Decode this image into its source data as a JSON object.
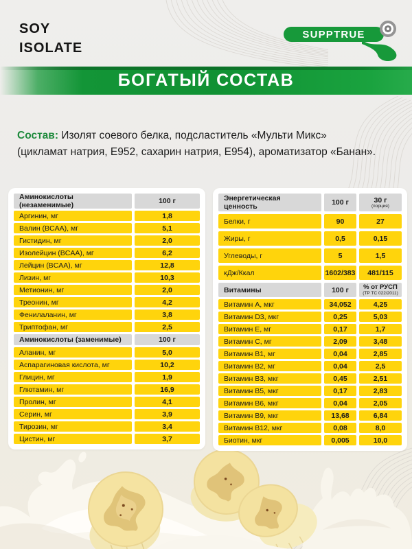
{
  "header": {
    "product_name": "SOY\nISOLATE",
    "brand": "SUPPTRUE",
    "brand_mark": "®"
  },
  "banner": {
    "title": "БОГАТЫЙ СОСТАВ"
  },
  "composition": {
    "label": "Состав:",
    "line1": "Изолят соевого белка, подсластитель «Мульти Микс»",
    "line2": "(цикламат натрия, Е952, сахарин натрия, Е954), ароматизатор «Банан»."
  },
  "amino_table": {
    "sections": [
      {
        "header": {
          "name": "Аминокислоты (незаменимые)",
          "col": "100 г"
        },
        "rows": [
          [
            "Аргинин, мг",
            "1,8"
          ],
          [
            "Валин (BCAA), мг",
            "5,1"
          ],
          [
            "Гистидин, мг",
            "2,0"
          ],
          [
            "Изолейцин (BCAA), мг",
            "6,2"
          ],
          [
            "Лейцин (BCAA), мг",
            "12,8"
          ],
          [
            "Лизин, мг",
            "10,3"
          ],
          [
            "Метионин, мг",
            "2,0"
          ],
          [
            "Треонин, мг",
            "4,2"
          ],
          [
            "Фенилаланин, мг",
            "3,8"
          ],
          [
            "Триптофан, мг",
            "2,5"
          ]
        ]
      },
      {
        "header": {
          "name": "Аминокислоты (заменимые)",
          "col": "100 г"
        },
        "rows": [
          [
            "Аланин, мг",
            "5,0"
          ],
          [
            "Аспарагиновая кислота, мг",
            "10,2"
          ],
          [
            "Глицин, мг",
            "1,9"
          ],
          [
            "Глютамин, мг",
            "16,9"
          ],
          [
            "Пролин, мг",
            "4,1"
          ],
          [
            "Серин, мг",
            "3,9"
          ],
          [
            "Тирозин, мг",
            "3,4"
          ],
          [
            "Цистин, мг",
            "3,7"
          ]
        ]
      }
    ]
  },
  "nutrition_table": {
    "energy": {
      "header": {
        "name": "Энергетическая ценность",
        "col1": "100 г",
        "col2": "30 г",
        "col2_sub": "(порция)"
      },
      "rows": [
        [
          "Белки, г",
          "90",
          "27"
        ],
        [
          "Жиры, г",
          "0,5",
          "0,15"
        ],
        [
          "Углеводы, г",
          "5",
          "1,5"
        ],
        [
          "кДж/Ккал",
          "1602/383",
          "481/115"
        ]
      ]
    },
    "vitamins": {
      "header": {
        "name": "Витамины",
        "col1": "100 г",
        "col2": "% от РУСП",
        "col2_sub": "(ТР ТС 022/2011)"
      },
      "rows": [
        [
          "Витамин А, мкг",
          "34,052",
          "4,25"
        ],
        [
          "Витамин D3, мкг",
          "0,25",
          "5,03"
        ],
        [
          "Витамин Е, мг",
          "0,17",
          "1,7"
        ],
        [
          "Витамин С, мг",
          "2,09",
          "3,48"
        ],
        [
          "Витамин В1, мг",
          "0,04",
          "2,85"
        ],
        [
          "Витамин В2, мг",
          "0,04",
          "2,5"
        ],
        [
          "Витамин В3, мкг",
          "0,45",
          "2,51"
        ],
        [
          "Витамин В5, мкг",
          "0,17",
          "2,83"
        ],
        [
          "Витамин В6, мкг",
          "0,04",
          "2,05"
        ],
        [
          "Витамин В9, мкг",
          "13,68",
          "6,84"
        ],
        [
          "Витамин В12, мкг",
          "0,08",
          "8,0"
        ],
        [
          "Биотин, мкг",
          "0,005",
          "10,0"
        ]
      ]
    }
  },
  "colors": {
    "accent_green": "#14963A",
    "row_yellow": "#FFD40C",
    "header_gray": "#D8D8D8",
    "banner_text": "#FFFFFF"
  }
}
